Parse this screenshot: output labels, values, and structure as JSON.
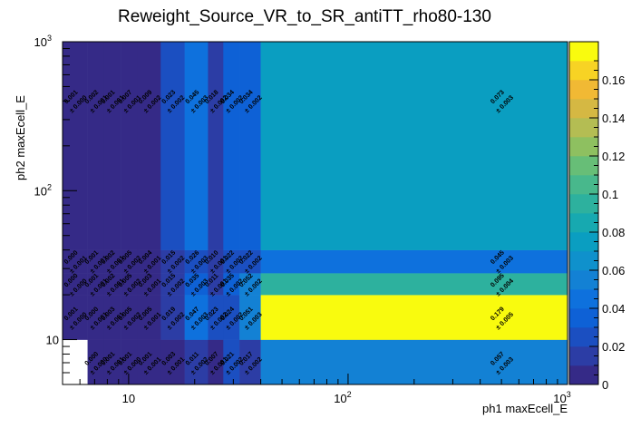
{
  "chart_data": {
    "type": "heatmap",
    "title": "Reweight_Source_VR_to_SR_antiTT_rho80-130",
    "xlabel": "ph1 maxEcell_E",
    "ylabel": "ph2 maxEcell_E",
    "x_scale": "log",
    "y_scale": "log",
    "xlim": [
      5,
      1000
    ],
    "ylim": [
      5,
      1000
    ],
    "x_tick_labels": [
      {
        "value": 10,
        "base": "10",
        "exp": ""
      },
      {
        "value": 100,
        "base": "10",
        "exp": "2"
      },
      {
        "value": 1000,
        "base": "10",
        "exp": "3"
      }
    ],
    "y_tick_labels": [
      {
        "value": 10,
        "base": "10",
        "exp": ""
      },
      {
        "value": 100,
        "base": "10",
        "exp": "2"
      },
      {
        "value": 1000,
        "base": "10",
        "exp": "3"
      }
    ],
    "x_bin_edges": [
      5,
      6.5,
      7.7,
      9.2,
      11,
      14,
      18,
      23,
      27,
      32,
      40,
      1000
    ],
    "y_bin_edges": [
      5,
      10,
      20,
      28,
      40,
      1000
    ],
    "z_range": [
      0,
      0.18
    ],
    "colorbar_ticks": [
      0,
      0.02,
      0.04,
      0.06,
      0.08,
      0.1,
      0.12,
      0.14,
      0.16
    ],
    "colorbar_tick_labels": [
      "0",
      "0.02",
      "0.04",
      "0.06",
      "0.08",
      "0.1",
      "0.12",
      "0.14",
      "0.16"
    ],
    "values": [
      [
        null,
        0.0,
        0.001,
        0.001,
        0.001,
        0.003,
        0.011,
        0.007,
        0.021,
        0.017,
        0.057
      ],
      [
        0.001,
        0.0,
        0.003,
        0.005,
        0.005,
        0.019,
        0.047,
        0.023,
        0.024,
        0.051,
        0.179
      ],
      [
        0.0,
        0.001,
        0.002,
        0.005,
        0.003,
        0.015,
        0.035,
        0.011,
        0.035,
        0.052,
        0.095
      ],
      [
        0.0,
        0.001,
        0.002,
        0.005,
        0.004,
        0.015,
        0.026,
        0.01,
        0.022,
        0.022,
        0.045
      ],
      [
        0.001,
        0.002,
        0.001,
        0.007,
        0.009,
        0.023,
        0.045,
        0.018,
        0.034,
        0.034,
        0.073
      ]
    ],
    "errors": [
      [
        null,
        0.0,
        0.001,
        0.0,
        0.001,
        0.001,
        0.002,
        0.001,
        0.002,
        0.002,
        0.003
      ],
      [
        0.0,
        0.001,
        0.001,
        0.002,
        0.001,
        0.002,
        0.003,
        0.002,
        0.002,
        0.003,
        0.005
      ],
      [
        0.0,
        0.001,
        0.001,
        0.002,
        0.001,
        0.002,
        0.003,
        0.001,
        0.002,
        0.002,
        0.004
      ],
      [
        0.001,
        0.001,
        0.001,
        0.002,
        0.001,
        0.002,
        0.003,
        0.001,
        0.002,
        0.002,
        0.003
      ],
      [
        0.0,
        0.001,
        0.001,
        0.001,
        0.002,
        0.002,
        0.003,
        0.002,
        0.002,
        0.002,
        0.003
      ]
    ],
    "palette": [
      "#352a87",
      "#2c3da5",
      "#1b4fc1",
      "#0e61d6",
      "#0e71dd",
      "#1381d4",
      "#0f91cc",
      "#0a9ec1",
      "#17a9b0",
      "#2db19e",
      "#48b88c",
      "#67be77",
      "#8ec060",
      "#b4bd53",
      "#d5b843",
      "#f1b934",
      "#f7d324",
      "#f9fb0e"
    ]
  }
}
